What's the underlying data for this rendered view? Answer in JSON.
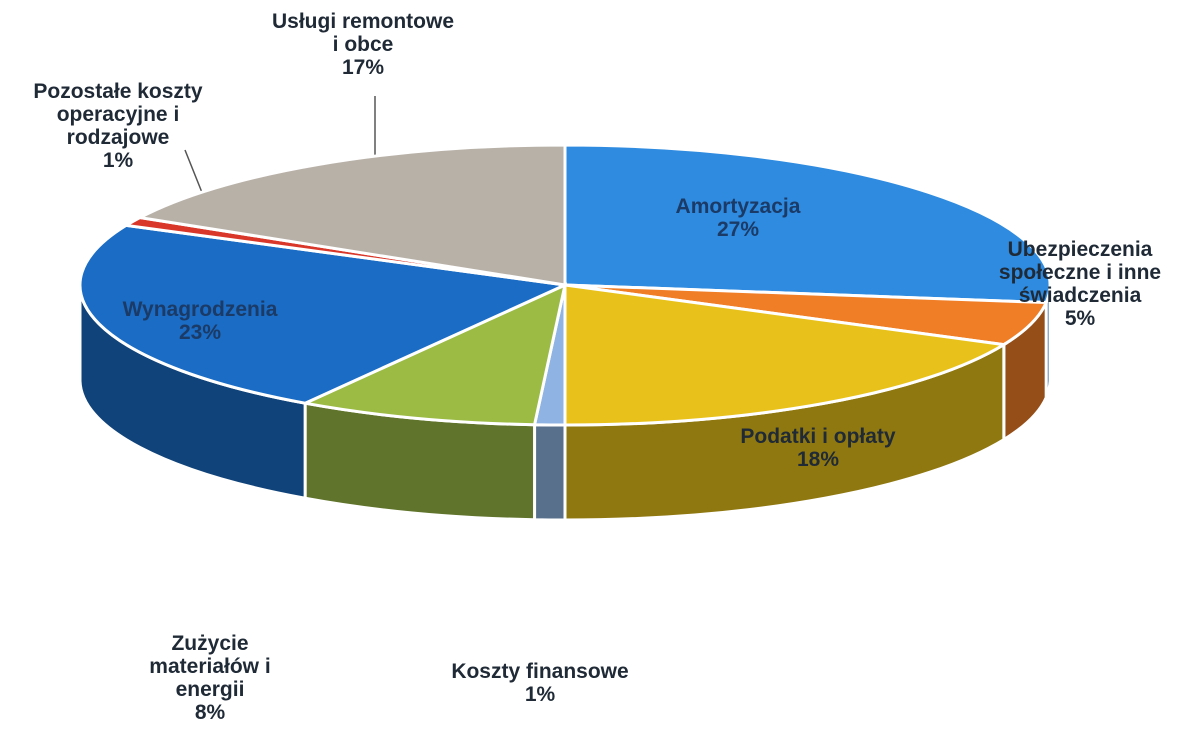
{
  "chart_data": {
    "type": "pie",
    "categories": [
      "Amortyzacja",
      "Ubezpieczenia społeczne i inne świadczenia",
      "Podatki i opłaty",
      "Koszty finansowe",
      "Zużycie materiałów i energii",
      "Wynagrodzenia",
      "Pozostałe koszty operacyjne i rodzajowe",
      "Usługi remontowe i obce"
    ],
    "values": [
      27,
      5,
      18,
      1,
      8,
      23,
      1,
      17
    ],
    "value_labels": [
      "27%",
      "5%",
      "18%",
      "1%",
      "8%",
      "23%",
      "1%",
      "17%"
    ],
    "colors": [
      "#2e8be0",
      "#f07e26",
      "#e8c21a",
      "#8fb4e3",
      "#9bbb45",
      "#1a6cc4",
      "#d9372a",
      "#b8b1a8"
    ]
  }
}
